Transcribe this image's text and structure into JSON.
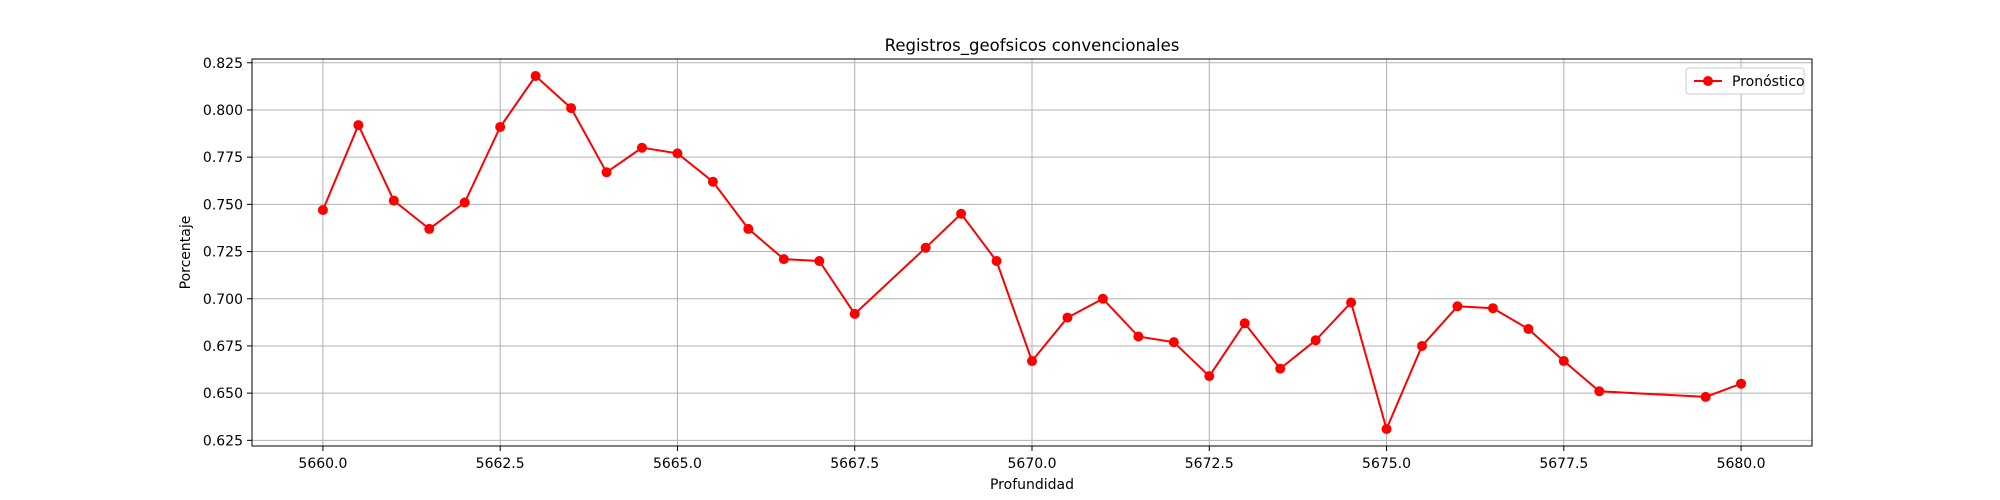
{
  "chart_data": {
    "type": "line",
    "title": "Registros_geofsicos convencionales",
    "xlabel": "Profundidad",
    "ylabel": "Porcentaje",
    "xlim": [
      5659.0,
      5681.0
    ],
    "ylim": [
      0.622,
      0.827
    ],
    "xticks": [
      5660.0,
      5662.5,
      5665.0,
      5667.5,
      5670.0,
      5672.5,
      5675.0,
      5677.5,
      5680.0
    ],
    "xtick_labels": [
      "5660.0",
      "5662.5",
      "5665.0",
      "5667.5",
      "5670.0",
      "5672.5",
      "5675.0",
      "5677.5",
      "5680.0"
    ],
    "yticks": [
      0.625,
      0.65,
      0.675,
      0.7,
      0.725,
      0.75,
      0.775,
      0.8,
      0.825
    ],
    "ytick_labels": [
      "0.625",
      "0.650",
      "0.675",
      "0.700",
      "0.725",
      "0.750",
      "0.775",
      "0.800",
      "0.825"
    ],
    "grid": true,
    "legend_position": "top-right",
    "series": [
      {
        "name": "Pronóstico",
        "color": "#ff0000",
        "marker": "circle",
        "x": [
          5660.0,
          5660.5,
          5661.0,
          5661.5,
          5662.0,
          5662.5,
          5663.0,
          5663.5,
          5664.0,
          5664.5,
          5665.0,
          5665.5,
          5666.0,
          5666.5,
          5667.0,
          5667.5,
          5668.5,
          5669.0,
          5669.5,
          5670.0,
          5670.5,
          5671.0,
          5671.5,
          5672.0,
          5672.5,
          5673.0,
          5673.5,
          5674.0,
          5674.5,
          5675.0,
          5675.5,
          5676.0,
          5676.5,
          5677.0,
          5677.5,
          5678.0,
          5679.5,
          5680.0
        ],
        "y": [
          0.747,
          0.792,
          0.752,
          0.737,
          0.751,
          0.791,
          0.818,
          0.801,
          0.767,
          0.78,
          0.777,
          0.762,
          0.737,
          0.721,
          0.72,
          0.692,
          0.727,
          0.745,
          0.72,
          0.667,
          0.69,
          0.7,
          0.68,
          0.677,
          0.659,
          0.687,
          0.663,
          0.678,
          0.698,
          0.631,
          0.675,
          0.696,
          0.695,
          0.684,
          0.667,
          0.651,
          0.648,
          0.655
        ]
      }
    ]
  }
}
